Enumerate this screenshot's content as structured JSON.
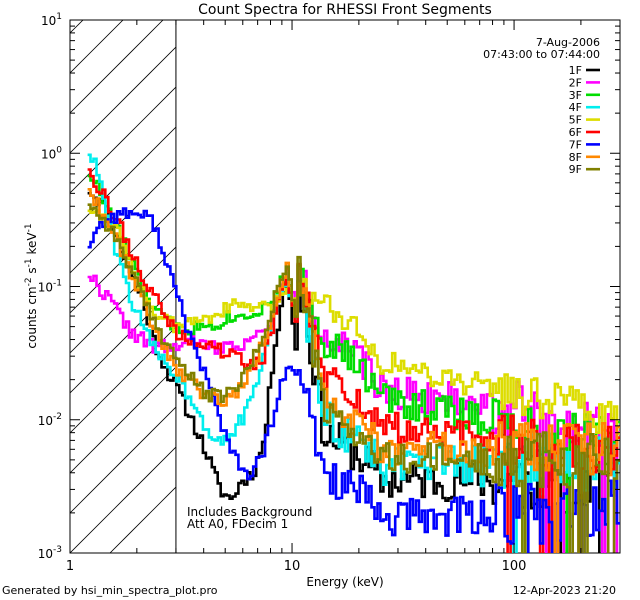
{
  "chart_data": {
    "type": "line",
    "title": "Count Spectra for RHESSI Front Segments",
    "xlabel": "Energy (keV)",
    "ylabel_main": "counts cm",
    "ylabel_exp1": "-2",
    "ylabel_mid": " s",
    "ylabel_exp2": "-1",
    "ylabel_end": " keV",
    "ylabel_exp3": "-1",
    "xscale": "log",
    "yscale": "log",
    "xlim": [
      1,
      300
    ],
    "ylim": [
      0.001,
      10
    ],
    "x_tick_labels": [
      "1",
      "10",
      "100"
    ],
    "y_tick_base": "10",
    "y_tick_exps": [
      "1",
      "0",
      "-1",
      "-2",
      "-3"
    ],
    "date": "7-Aug-2006",
    "time_range": "07:43:00 to 07:44:00",
    "hatched_region_max_keV": 3,
    "annotation_line1": "Includes Background",
    "annotation_line2": "Att A0, FDecim 1",
    "footer_left": "Generated by hsi_min_spectra_plot.pro",
    "footer_right": "12-Apr-2023 21:20",
    "series": [
      {
        "name": "1F",
        "color": "#000000",
        "seed": 11,
        "noise": 0.35,
        "low": [
          0.55,
          0.45,
          0.35,
          0.2,
          0.12,
          0.08,
          0.04,
          0.025,
          0.018,
          0.012,
          0.008,
          0.005,
          0.003,
          0.0025,
          0.0035,
          0.004,
          0.007,
          0.04,
          0.12,
          0.03
        ],
        "k": 0.0035,
        "p": 0.0
      },
      {
        "name": "2F",
        "color": "#ff00ff",
        "seed": 22,
        "noise": 0.3,
        "low": [
          0.13,
          0.1,
          0.08,
          0.06,
          0.045,
          0.04,
          0.035,
          0.035,
          0.035,
          0.038,
          0.038,
          0.035,
          0.035,
          0.035,
          0.038,
          0.04,
          0.045,
          0.07,
          0.13,
          0.06
        ],
        "k": 0.018,
        "p": 0.25
      },
      {
        "name": "3F",
        "color": "#00dd00",
        "seed": 33,
        "noise": 0.3,
        "low": [
          0.75,
          0.55,
          0.35,
          0.25,
          0.15,
          0.1,
          0.07,
          0.055,
          0.05,
          0.048,
          0.05,
          0.052,
          0.055,
          0.06,
          0.06,
          0.065,
          0.07,
          0.09,
          0.12,
          0.06
        ],
        "k": 0.016,
        "p": 0.35
      },
      {
        "name": "4F",
        "color": "#00eeee",
        "seed": 44,
        "noise": 0.35,
        "low": [
          1.1,
          0.7,
          0.28,
          0.14,
          0.08,
          0.05,
          0.035,
          0.028,
          0.022,
          0.016,
          0.012,
          0.008,
          0.007,
          0.008,
          0.01,
          0.015,
          0.03,
          0.07,
          0.12,
          0.05
        ],
        "k": 0.0045,
        "p": 0.0
      },
      {
        "name": "5F",
        "color": "#dddd00",
        "seed": 55,
        "noise": 0.22,
        "low": [
          0.4,
          0.35,
          0.3,
          0.25,
          0.15,
          0.09,
          0.065,
          0.055,
          0.05,
          0.052,
          0.056,
          0.06,
          0.065,
          0.07,
          0.072,
          0.07,
          0.068,
          0.075,
          0.1,
          0.07
        ],
        "k": 0.03,
        "p": 0.4
      },
      {
        "name": "6F",
        "color": "#ff0000",
        "seed": 66,
        "noise": 0.28,
        "low": [
          0.85,
          0.55,
          0.4,
          0.28,
          0.18,
          0.12,
          0.085,
          0.06,
          0.045,
          0.04,
          0.038,
          0.036,
          0.033,
          0.03,
          0.028,
          0.026,
          0.03,
          0.06,
          0.13,
          0.05
        ],
        "k": 0.009,
        "p": 0.15
      },
      {
        "name": "7F",
        "color": "#0000ff",
        "seed": 77,
        "noise": 0.35,
        "low": [
          0.2,
          0.28,
          0.33,
          0.35,
          0.36,
          0.34,
          0.3,
          0.17,
          0.09,
          0.05,
          0.03,
          0.018,
          0.01,
          0.006,
          0.004,
          0.004,
          0.006,
          0.012,
          0.025,
          0.02
        ],
        "k": 0.0018,
        "p": -0.05
      },
      {
        "name": "8F",
        "color": "#ff8800",
        "seed": 88,
        "noise": 0.3,
        "low": [
          0.6,
          0.4,
          0.3,
          0.2,
          0.12,
          0.08,
          0.05,
          0.035,
          0.025,
          0.02,
          0.017,
          0.015,
          0.014,
          0.015,
          0.018,
          0.025,
          0.04,
          0.08,
          0.14,
          0.06
        ],
        "k": 0.006,
        "p": 0.0
      },
      {
        "name": "9F",
        "color": "#808000",
        "seed": 99,
        "noise": 0.3,
        "low": [
          0.45,
          0.35,
          0.28,
          0.2,
          0.13,
          0.08,
          0.055,
          0.04,
          0.03,
          0.022,
          0.018,
          0.015,
          0.015,
          0.016,
          0.02,
          0.028,
          0.045,
          0.085,
          0.15,
          0.05
        ],
        "k": 0.005,
        "p": 0.0
      }
    ]
  }
}
